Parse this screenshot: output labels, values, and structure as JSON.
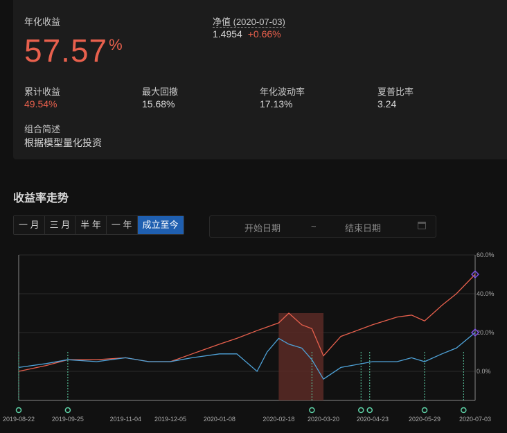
{
  "summary": {
    "annual_return_label": "年化收益",
    "annual_return_value": "57.57",
    "annual_return_unit": "%",
    "nav_label": "净值 (2020-07-03)",
    "nav_value": "1.4954",
    "nav_change": "+0.66%",
    "metrics": [
      {
        "label": "累计收益",
        "value": "49.54%"
      },
      {
        "label": "最大回撤",
        "value": "15.68%"
      },
      {
        "label": "年化波动率",
        "value": "17.13%"
      },
      {
        "label": "夏普比率",
        "value": "3.24"
      }
    ],
    "desc_label": "组合简述",
    "desc_value": "根据模型量化投资"
  },
  "trend": {
    "title": "收益率走势",
    "tabs": [
      "一 月",
      "三 月",
      "半 年",
      "一 年",
      "成立至今"
    ],
    "active_tab": 4,
    "date_start_placeholder": "开始日期",
    "date_separator": "~",
    "date_end_placeholder": "结束日期"
  },
  "colors": {
    "portfolio": "#e8604d",
    "benchmark": "#4fa3d9",
    "drawdown": "#5a2a26",
    "rebalance": "#5fd4a8",
    "endpoint": "#7a4fe0"
  },
  "chart_data": {
    "type": "line",
    "x_ticks": [
      "2019-08-22",
      "2019-09-25",
      "2019-11-04",
      "2019-12-05",
      "2020-01-08",
      "2020-02-18",
      "2020-03-20",
      "2020-04-23",
      "2020-05-29",
      "2020-07-03"
    ],
    "y_ticks": [
      "60.0%",
      "40.0%",
      "20.0%",
      "0.0%"
    ],
    "ylim": [
      -15,
      60
    ],
    "series": [
      {
        "key": "portfolio",
        "x": [
          "2019-08-22",
          "2019-09-10",
          "2019-09-25",
          "2019-10-15",
          "2019-11-04",
          "2019-11-20",
          "2019-12-05",
          "2019-12-20",
          "2020-01-08",
          "2020-01-20",
          "2020-02-03",
          "2020-02-18",
          "2020-02-25",
          "2020-03-05",
          "2020-03-12",
          "2020-03-20",
          "2020-04-01",
          "2020-04-23",
          "2020-05-10",
          "2020-05-20",
          "2020-05-29",
          "2020-06-10",
          "2020-06-20",
          "2020-07-03"
        ],
        "values": [
          0,
          3,
          6,
          6,
          7,
          5,
          5,
          9,
          14,
          17,
          21,
          25,
          30,
          24,
          22,
          8,
          18,
          24,
          28,
          29,
          26,
          34,
          40,
          50
        ]
      },
      {
        "key": "benchmark",
        "x": [
          "2019-08-22",
          "2019-09-10",
          "2019-09-25",
          "2019-10-15",
          "2019-11-04",
          "2019-11-20",
          "2019-12-05",
          "2019-12-20",
          "2020-01-08",
          "2020-01-20",
          "2020-02-03",
          "2020-02-10",
          "2020-02-18",
          "2020-02-25",
          "2020-03-05",
          "2020-03-12",
          "2020-03-20",
          "2020-04-01",
          "2020-04-23",
          "2020-05-10",
          "2020-05-20",
          "2020-05-29",
          "2020-06-10",
          "2020-06-20",
          "2020-07-03"
        ],
        "values": [
          2,
          4,
          6,
          5,
          7,
          5,
          5,
          7,
          9,
          9,
          0,
          10,
          17,
          14,
          12,
          6,
          -4,
          2,
          5,
          5,
          7,
          5,
          9,
          12,
          20
        ]
      }
    ],
    "drawdown_range": [
      "2020-02-18",
      "2020-03-20"
    ],
    "rebalance_dates": [
      "2019-08-22",
      "2019-09-25",
      "2020-03-12",
      "2020-04-15",
      "2020-04-21",
      "2020-05-29",
      "2020-06-25"
    ]
  }
}
